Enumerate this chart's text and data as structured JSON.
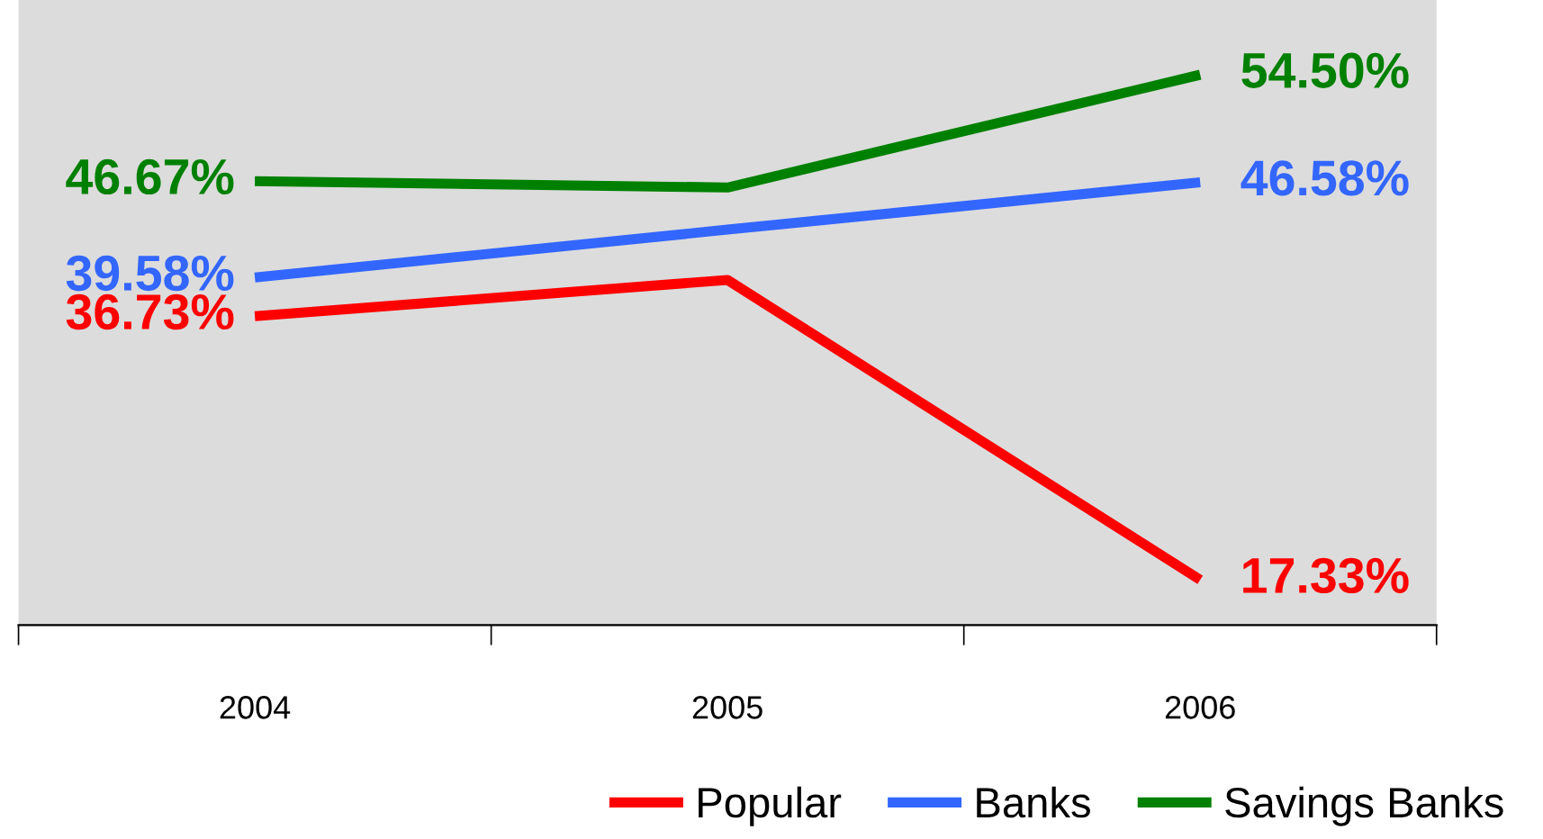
{
  "chart_data": {
    "type": "line",
    "categories": [
      "2004",
      "2005",
      "2006"
    ],
    "series": [
      {
        "name": "Popular",
        "color": "#ff0000",
        "values": [
          36.73,
          39.4,
          17.33
        ],
        "value_labels": [
          "36.73%",
          null,
          "17.33%"
        ]
      },
      {
        "name": "Banks",
        "color": "#3366ff",
        "values": [
          39.58,
          43.1,
          46.58
        ],
        "value_labels": [
          "39.58%",
          null,
          "46.58%"
        ]
      },
      {
        "name": "Savings Banks",
        "color": "#008000",
        "values": [
          46.67,
          46.2,
          54.5
        ],
        "value_labels": [
          "46.67%",
          null,
          "54.50%"
        ]
      }
    ],
    "ylim": [
      14,
      60
    ],
    "tick_labels": "x",
    "grid": false,
    "legend": "bottom",
    "marker": "none",
    "line_style": "solid"
  }
}
